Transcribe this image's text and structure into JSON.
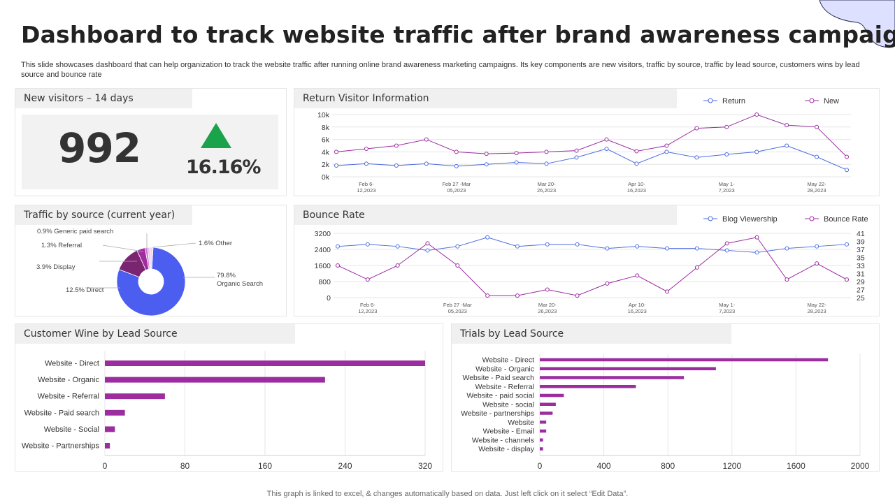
{
  "title": "Dashboard to track website traffic after brand awareness campaign",
  "subtitle": "This slide showcases dashboard that can help organization to track the website traffic after running online brand awareness marketing campaigns. Its key components are new visitors, traffic by source, traffic by lead source, customers wins by lead source and bounce rate",
  "footer": "This graph is linked to excel,  & changes automatically based on data. Just left click on it select “Edit Data”.",
  "colors": {
    "accent_purple": "#9b2d9f",
    "accent_blue": "#4a6be0",
    "positive_green": "#1aa34a",
    "pie_blue": "#4b5ef0",
    "pie_dark_purple": "#7a2472",
    "pie_purple": "#a02d9f",
    "pie_pink": "#d57bd4",
    "pie_light": "#e8b7e6",
    "pie_pale": "#f1d6f0"
  },
  "new_visitors": {
    "title": "New visitors – 14 days",
    "value": "992",
    "change": "16.16%",
    "trend_icon": "up-triangle-icon"
  },
  "chart_data": [
    {
      "id": "return_visitor",
      "type": "line",
      "title": "Return Visitor Information",
      "x_tick_labels": [
        {
          "index": 1,
          "lines": [
            "Feb 6-",
            "12,2023"
          ]
        },
        {
          "index": 4,
          "lines": [
            "Feb 27 -Mar",
            "05,2023"
          ]
        },
        {
          "index": 7,
          "lines": [
            "Mar 20-",
            "26,2023"
          ]
        },
        {
          "index": 10,
          "lines": [
            "Apr 10-",
            "16,2023"
          ]
        },
        {
          "index": 13,
          "lines": [
            "May 1-",
            "7,2023"
          ]
        },
        {
          "index": 16,
          "lines": [
            "May 22-",
            "28,2023"
          ]
        }
      ],
      "point_count": 18,
      "y_ticks": [
        "0k",
        "2k",
        "4k",
        "6k",
        "8k",
        "10k"
      ],
      "ylim": [
        0,
        10000
      ],
      "series": [
        {
          "name": "Return",
          "color": "#4a6be0",
          "values": [
            1800,
            2100,
            1800,
            2100,
            1700,
            2000,
            2300,
            2100,
            3100,
            4500,
            2100,
            4000,
            3100,
            3600,
            4000,
            5000,
            3200,
            1100
          ]
        },
        {
          "name": "New",
          "color": "#9b2d9f",
          "values": [
            4000,
            4500,
            5000,
            6000,
            4000,
            3700,
            3800,
            4000,
            4200,
            6000,
            4100,
            5000,
            7800,
            8000,
            10000,
            8300,
            8000,
            3200
          ]
        }
      ],
      "legend_position": "top-right"
    },
    {
      "id": "traffic_source",
      "type": "pie",
      "title": "Traffic by source (current year)",
      "slices": [
        {
          "label": "Organic Search",
          "value": 79.8,
          "text": "79.8%\nOrganic Search",
          "color": "#4b5ef0"
        },
        {
          "label": "Direct",
          "value": 12.5,
          "text": "12.5% Direct",
          "color": "#7a2472"
        },
        {
          "label": "Display",
          "value": 3.9,
          "text": "3.9% Display",
          "color": "#a02d9f"
        },
        {
          "label": "Referral",
          "value": 1.3,
          "text": "1.3% Referral",
          "color": "#d57bd4"
        },
        {
          "label": "Generic paid search",
          "value": 0.9,
          "text": "0.9% Generic paid search",
          "color": "#e8b7e6"
        },
        {
          "label": "Other",
          "value": 1.6,
          "text": "1.6% Other",
          "color": "#f1d6f0"
        }
      ]
    },
    {
      "id": "bounce_rate",
      "type": "line",
      "title": "Bounce Rate",
      "x_tick_labels": [
        {
          "index": 1,
          "lines": [
            "Feb 6-",
            "12,2023"
          ]
        },
        {
          "index": 4,
          "lines": [
            "Feb 27 -Mar",
            "05,2023"
          ]
        },
        {
          "index": 7,
          "lines": [
            "Mar 20-",
            "26,2023"
          ]
        },
        {
          "index": 10,
          "lines": [
            "Apr 10-",
            "16,2023"
          ]
        },
        {
          "index": 13,
          "lines": [
            "May 1-",
            "7,2023"
          ]
        },
        {
          "index": 16,
          "lines": [
            "May 22-",
            "28,2023"
          ]
        }
      ],
      "point_count": 18,
      "y_ticks_left": [
        "0",
        "800",
        "1600",
        "2400",
        "3200"
      ],
      "ylim_left": [
        0,
        3200
      ],
      "y_ticks_right": [
        "25",
        "27",
        "29",
        "31",
        "33",
        "35",
        "37",
        "39",
        "41"
      ],
      "ylim_right": [
        25,
        41
      ],
      "series": [
        {
          "name": "Blog Viewership",
          "axis": "left",
          "color": "#4a6be0",
          "values": [
            2550,
            2650,
            2550,
            2350,
            2550,
            3000,
            2550,
            2650,
            2650,
            2450,
            2550,
            2450,
            2450,
            2350,
            2250,
            2450,
            2550,
            2650
          ]
        },
        {
          "name": "Bounce Rate",
          "axis": "right",
          "color": "#9b2d9f",
          "values": [
            33,
            29.5,
            33,
            38.5,
            33,
            25.5,
            25.5,
            27,
            25.5,
            28.5,
            30.5,
            26.5,
            32.5,
            38.5,
            40,
            29.5,
            33.5,
            29.5
          ]
        }
      ],
      "legend_position": "top-right"
    },
    {
      "id": "customer_wins",
      "type": "bar",
      "orientation": "horizontal",
      "title": "Customer Wine by Lead Source",
      "categories": [
        "Website -  Direct",
        "Website -  Organic",
        "Website -  Referral",
        "Website -  Paid search",
        "Website -  Social",
        "Website -  Partnerships"
      ],
      "values": [
        320,
        220,
        60,
        20,
        10,
        5
      ],
      "x_ticks": [
        "0",
        "80",
        "160",
        "240",
        "320"
      ],
      "xlim": [
        0,
        320
      ],
      "color": "#9b2d9f"
    },
    {
      "id": "trials",
      "type": "bar",
      "orientation": "horizontal",
      "title": "Trials by Lead Source",
      "categories": [
        "Website -  Direct",
        "Website -  Organic",
        "Website -  Paid search",
        "Website -  Referral",
        "Website -  paid social",
        "Website -  social",
        "Website -  partnerships",
        "Website",
        "Website -  Email",
        "Website -  channels",
        "Website -  display"
      ],
      "values": [
        1800,
        1100,
        900,
        600,
        150,
        100,
        80,
        40,
        40,
        20,
        20
      ],
      "x_ticks": [
        "0",
        "400",
        "800",
        "1200",
        "1600",
        "2000"
      ],
      "xlim": [
        0,
        2000
      ],
      "color": "#9b2d9f"
    }
  ]
}
